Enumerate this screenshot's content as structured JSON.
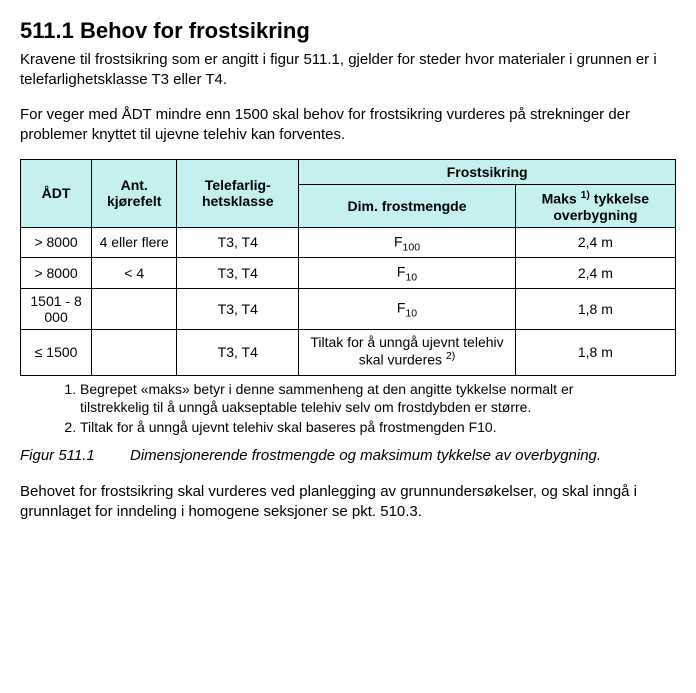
{
  "heading": "511.1    Behov for frostsikring",
  "para1": "Kravene til frostsikring som er angitt i figur 511.1, gjelder for steder hvor materialer i grunnen er i telefarlighetsklasse T3 eller T4.",
  "para2": "For veger med ÅDT mindre enn 1500 skal behov for frostsikring vurderes på strekninger der problemer knyttet til ujevne telehiv kan forventes.",
  "table": {
    "headers": {
      "adt": "ÅDT",
      "lanes": "Ant. kjørefelt",
      "teleclass": "Telefarlig-hetsklasse",
      "frost_group": "Frostsikring",
      "dim": "Dim. frostmengde",
      "max_pre": "Maks ",
      "max_sup": "1)",
      "max_post": " tykkelse overbygning"
    },
    "rows": [
      {
        "adt": "> 8000",
        "lanes": "4 eller flere",
        "tele": "T3, T4",
        "dim_pre": "F",
        "dim_sub": "100",
        "dim_post": "",
        "max": "2,4 m"
      },
      {
        "adt": "> 8000",
        "lanes": "< 4",
        "tele": "T3, T4",
        "dim_pre": "F",
        "dim_sub": "10",
        "dim_post": "",
        "max": "2,4 m"
      },
      {
        "adt": "1501 - 8 000",
        "lanes": "",
        "tele": "T3, T4",
        "dim_pre": "F",
        "dim_sub": "10",
        "dim_post": "",
        "max": "1,8 m"
      },
      {
        "adt": "≤ 1500",
        "lanes": "",
        "tele": "T3, T4",
        "dim_pre": "Tiltak for å unngå ujevnt telehiv skal vurderes ",
        "dim_sub": "",
        "dim_post": "2)",
        "max": "1,8 m"
      }
    ]
  },
  "footnotes": {
    "n1": "Begrepet «maks» betyr i denne sammenheng at den angitte tykkelse normalt er tilstrekkelig til å unngå uakseptable telehiv selv om frostdybden er større.",
    "n2": "Tiltak for å unngå ujevnt telehiv skal baseres på frostmengden F10."
  },
  "caption": {
    "label": "Figur 511.1",
    "text": "Dimensjonerende frostmengde og maksimum tykkelse av overbygning."
  },
  "para3": "Behovet for frostsikring skal vurderes ved planlegging av grunnundersøkelser, og skal inngå i grunnlaget for inndeling i homogene seksjoner se pkt. 510.3."
}
